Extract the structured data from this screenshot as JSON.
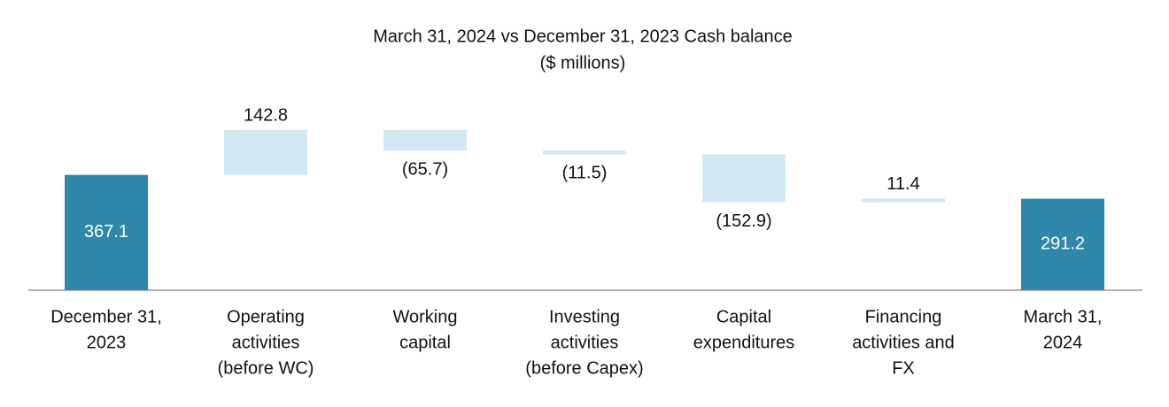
{
  "chart_data": {
    "type": "waterfall",
    "title": "March 31, 2024 vs December 31, 2023 Cash  balance",
    "subtitle": "($ millions)",
    "categories": [
      [
        "December 31,",
        "2023"
      ],
      [
        "Operating",
        "activities",
        "(before WC)"
      ],
      [
        "Working",
        "capital"
      ],
      [
        "Investing",
        "activities",
        "(before Capex)"
      ],
      [
        "Capital",
        "expenditures"
      ],
      [
        "Financing",
        "activities and",
        "FX"
      ],
      [
        "March 31,",
        "2024"
      ]
    ],
    "values": [
      367.1,
      142.8,
      -65.7,
      -11.5,
      -152.9,
      11.4,
      291.2
    ],
    "value_labels": [
      "367.1",
      "142.8",
      "(65.7)",
      "(11.5)",
      "(152.9)",
      "11.4",
      "291.2"
    ],
    "is_total": [
      true,
      false,
      false,
      false,
      false,
      false,
      true
    ],
    "total_color": "#2f87aa",
    "change_color": "#d3e8f3"
  }
}
